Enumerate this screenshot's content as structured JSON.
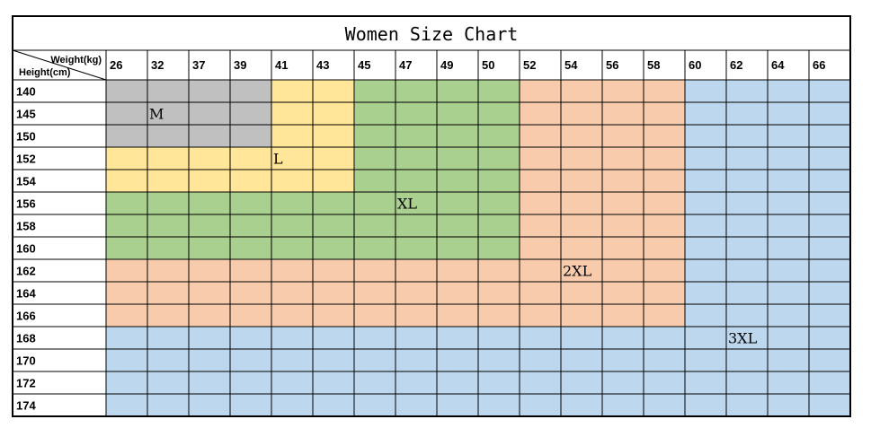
{
  "chart_data": {
    "type": "table",
    "title": "Women Size Chart",
    "corner_top": "Weight(kg)",
    "corner_bottom": "Height(cm)",
    "weights": [
      "26",
      "32",
      "37",
      "39",
      "41",
      "43",
      "45",
      "47",
      "49",
      "50",
      "52",
      "54",
      "56",
      "58",
      "60",
      "62",
      "64",
      "66"
    ],
    "heights": [
      "140",
      "145",
      "150",
      "152",
      "154",
      "156",
      "158",
      "160",
      "162",
      "164",
      "166",
      "168",
      "170",
      "172",
      "174"
    ],
    "size_colors": {
      "M": "#c0c0c0",
      "L": "#ffe699",
      "XL": "#a9d08e",
      "2XL": "#f8cbad",
      "3XL": "#bdd7ee"
    },
    "size_grid": [
      [
        "M",
        "M",
        "M",
        "M",
        "L",
        "L",
        "XL",
        "XL",
        "XL",
        "XL",
        "2XL",
        "2XL",
        "2XL",
        "2XL",
        "3XL",
        "3XL",
        "3XL",
        "3XL"
      ],
      [
        "M",
        "M",
        "M",
        "M",
        "L",
        "L",
        "XL",
        "XL",
        "XL",
        "XL",
        "2XL",
        "2XL",
        "2XL",
        "2XL",
        "3XL",
        "3XL",
        "3XL",
        "3XL"
      ],
      [
        "M",
        "M",
        "M",
        "M",
        "L",
        "L",
        "XL",
        "XL",
        "XL",
        "XL",
        "2XL",
        "2XL",
        "2XL",
        "2XL",
        "3XL",
        "3XL",
        "3XL",
        "3XL"
      ],
      [
        "L",
        "L",
        "L",
        "L",
        "L",
        "L",
        "XL",
        "XL",
        "XL",
        "XL",
        "2XL",
        "2XL",
        "2XL",
        "2XL",
        "3XL",
        "3XL",
        "3XL",
        "3XL"
      ],
      [
        "L",
        "L",
        "L",
        "L",
        "L",
        "L",
        "XL",
        "XL",
        "XL",
        "XL",
        "2XL",
        "2XL",
        "2XL",
        "2XL",
        "3XL",
        "3XL",
        "3XL",
        "3XL"
      ],
      [
        "XL",
        "XL",
        "XL",
        "XL",
        "XL",
        "XL",
        "XL",
        "XL",
        "XL",
        "XL",
        "2XL",
        "2XL",
        "2XL",
        "2XL",
        "3XL",
        "3XL",
        "3XL",
        "3XL"
      ],
      [
        "XL",
        "XL",
        "XL",
        "XL",
        "XL",
        "XL",
        "XL",
        "XL",
        "XL",
        "XL",
        "2XL",
        "2XL",
        "2XL",
        "2XL",
        "3XL",
        "3XL",
        "3XL",
        "3XL"
      ],
      [
        "XL",
        "XL",
        "XL",
        "XL",
        "XL",
        "XL",
        "XL",
        "XL",
        "XL",
        "XL",
        "2XL",
        "2XL",
        "2XL",
        "2XL",
        "3XL",
        "3XL",
        "3XL",
        "3XL"
      ],
      [
        "2XL",
        "2XL",
        "2XL",
        "2XL",
        "2XL",
        "2XL",
        "2XL",
        "2XL",
        "2XL",
        "2XL",
        "2XL",
        "2XL",
        "2XL",
        "2XL",
        "3XL",
        "3XL",
        "3XL",
        "3XL"
      ],
      [
        "2XL",
        "2XL",
        "2XL",
        "2XL",
        "2XL",
        "2XL",
        "2XL",
        "2XL",
        "2XL",
        "2XL",
        "2XL",
        "2XL",
        "2XL",
        "2XL",
        "3XL",
        "3XL",
        "3XL",
        "3XL"
      ],
      [
        "2XL",
        "2XL",
        "2XL",
        "2XL",
        "2XL",
        "2XL",
        "2XL",
        "2XL",
        "2XL",
        "2XL",
        "2XL",
        "2XL",
        "2XL",
        "2XL",
        "3XL",
        "3XL",
        "3XL",
        "3XL"
      ],
      [
        "3XL",
        "3XL",
        "3XL",
        "3XL",
        "3XL",
        "3XL",
        "3XL",
        "3XL",
        "3XL",
        "3XL",
        "3XL",
        "3XL",
        "3XL",
        "3XL",
        "3XL",
        "3XL",
        "3XL",
        "3XL"
      ],
      [
        "3XL",
        "3XL",
        "3XL",
        "3XL",
        "3XL",
        "3XL",
        "3XL",
        "3XL",
        "3XL",
        "3XL",
        "3XL",
        "3XL",
        "3XL",
        "3XL",
        "3XL",
        "3XL",
        "3XL",
        "3XL"
      ],
      [
        "3XL",
        "3XL",
        "3XL",
        "3XL",
        "3XL",
        "3XL",
        "3XL",
        "3XL",
        "3XL",
        "3XL",
        "3XL",
        "3XL",
        "3XL",
        "3XL",
        "3XL",
        "3XL",
        "3XL",
        "3XL"
      ],
      [
        "3XL",
        "3XL",
        "3XL",
        "3XL",
        "3XL",
        "3XL",
        "3XL",
        "3XL",
        "3XL",
        "3XL",
        "3XL",
        "3XL",
        "3XL",
        "3XL",
        "3XL",
        "3XL",
        "3XL",
        "3XL"
      ]
    ],
    "size_labels": [
      {
        "text": "M",
        "height": "145",
        "weight": "32"
      },
      {
        "text": "L",
        "height": "152",
        "weight": "41"
      },
      {
        "text": "XL",
        "height": "156",
        "weight": "47"
      },
      {
        "text": "2XL",
        "height": "162",
        "weight": "54"
      },
      {
        "text": "3XL",
        "height": "168",
        "weight": "62"
      }
    ]
  }
}
